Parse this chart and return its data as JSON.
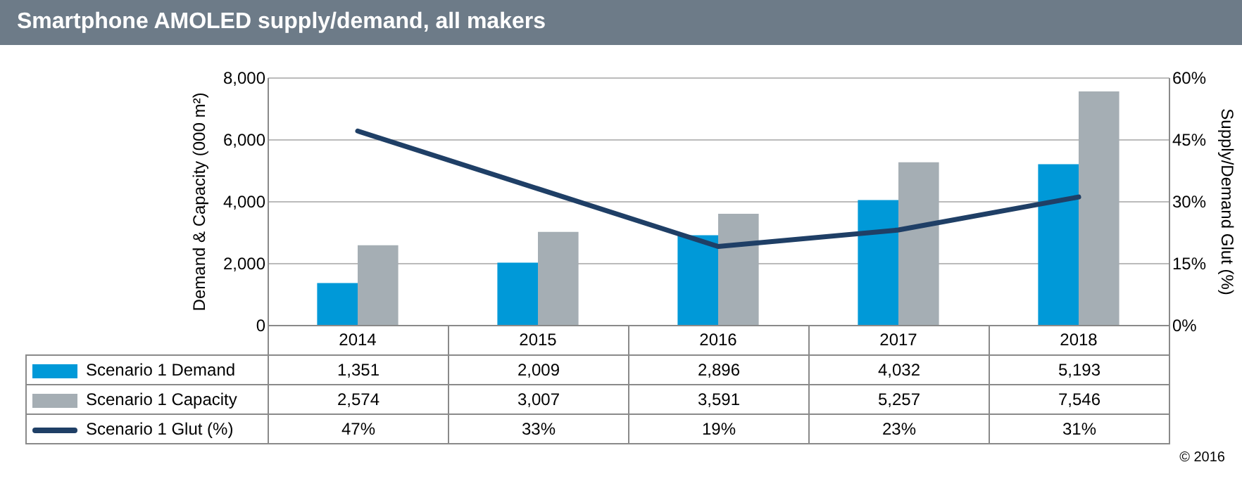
{
  "chart_data": {
    "type": "bar",
    "title": "Smartphone AMOLED supply/demand, all makers",
    "ylabel": "Demand & Capacity (000 m²)",
    "y2label": "Supply/Demand Glut (%)",
    "categories": [
      "2014",
      "2015",
      "2016",
      "2017",
      "2018"
    ],
    "series": [
      {
        "name": "Scenario 1 Demand",
        "color": "#0099d8",
        "values": [
          1351,
          2009,
          2896,
          4032,
          5193
        ],
        "value_labels": [
          "1,351",
          "2,009",
          "2,896",
          "4,032",
          "5,193"
        ]
      },
      {
        "name": "Scenario 1 Capacity",
        "color": "#a5aeb4",
        "values": [
          2574,
          3007,
          3591,
          5257,
          7546
        ],
        "value_labels": [
          "2,574",
          "3,007",
          "3,591",
          "5,257",
          "7,546"
        ]
      },
      {
        "name": "Scenario 1 Glut (%)",
        "color": "#1f3f66",
        "type": "line",
        "axis": "y2",
        "values": [
          47,
          33,
          19,
          23,
          31
        ],
        "value_labels": [
          "47%",
          "33%",
          "19%",
          "23%",
          "31%"
        ]
      }
    ],
    "ylim": [
      0,
      8000
    ],
    "yticks": [
      0,
      {
        "value": 2000,
        "label": "2,000"
      },
      {
        "value": 4000,
        "label": "4,000"
      },
      {
        "value": 6000,
        "label": "6,000"
      },
      {
        "value": 8000,
        "label": "8,000"
      }
    ],
    "y2lim": [
      0,
      60
    ],
    "y2ticks": [
      {
        "value": 0,
        "label": "0%"
      },
      {
        "value": 15,
        "label": "15%"
      },
      {
        "value": 30,
        "label": "30%"
      },
      {
        "value": 45,
        "label": "45%"
      },
      {
        "value": 60,
        "label": "60%"
      }
    ],
    "grid": "y",
    "legend": "bottom",
    "marker": "none",
    "line_style": "solid",
    "annotations": [
      "© 2016"
    ]
  }
}
